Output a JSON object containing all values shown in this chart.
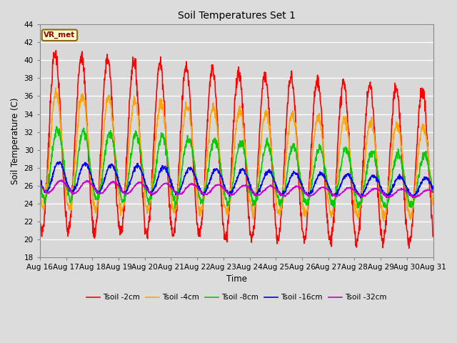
{
  "title": "Soil Temperatures Set 1",
  "xlabel": "Time",
  "ylabel": "Soil Temperature (C)",
  "ylim": [
    18,
    44
  ],
  "yticks": [
    18,
    20,
    22,
    24,
    26,
    28,
    30,
    32,
    34,
    36,
    38,
    40,
    42,
    44
  ],
  "annotation_text": "VR_met",
  "annotation_color": "#8B0000",
  "annotation_bg": "#FFFFCC",
  "annotation_border": "#8B6914",
  "background_color": "#D8D8D8",
  "plot_bg": "#D8D8D8",
  "grid_color": "#FFFFFF",
  "legend_entries": [
    "Tsoil -2cm",
    "Tsoil -4cm",
    "Tsoil -8cm",
    "Tsoil -16cm",
    "Tsoil -32cm"
  ],
  "line_colors": [
    "#FF0000",
    "#FFA500",
    "#00CC00",
    "#0000FF",
    "#CC00CC"
  ],
  "line_widths": [
    1.2,
    1.2,
    1.2,
    1.2,
    1.2
  ],
  "xtick_labels": [
    "Aug 16",
    "Aug 17",
    "Aug 18",
    "Aug 19",
    "Aug 20",
    "Aug 21",
    "Aug 22",
    "Aug 23",
    "Aug 24",
    "Aug 25",
    "Aug 26",
    "Aug 27",
    "Aug 28",
    "Aug 29",
    "Aug 30",
    "Aug 31"
  ],
  "figsize": [
    6.4,
    4.8
  ],
  "dpi": 100
}
